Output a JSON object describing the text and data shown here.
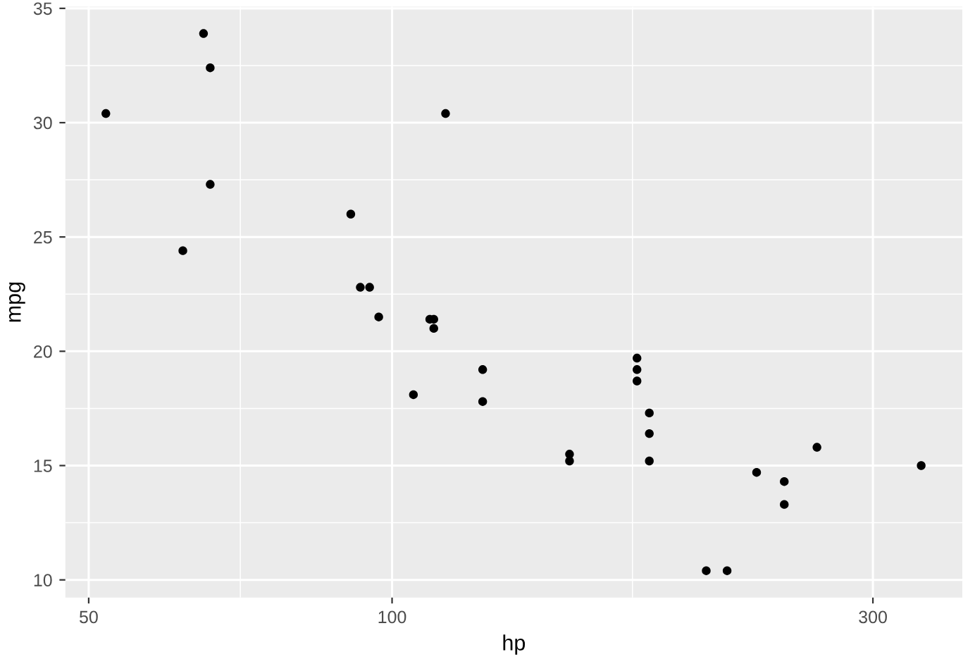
{
  "chart_data": {
    "type": "scatter",
    "xlabel": "hp",
    "ylabel": "mpg",
    "log": "x",
    "grid": true,
    "marker": "circle",
    "x": [
      110,
      93,
      110,
      175,
      105,
      245,
      62,
      95,
      123,
      123,
      180,
      180,
      180,
      205,
      215,
      230,
      66,
      52,
      65,
      97,
      150,
      150,
      245,
      175,
      66,
      91,
      113,
      264,
      175,
      335,
      109
    ],
    "series": [
      {
        "color": "#000000",
        "values": [
          21.0,
          22.8,
          21.4,
          18.7,
          18.1,
          14.3,
          24.4,
          22.8,
          19.2,
          17.8,
          16.4,
          17.3,
          15.2,
          10.4,
          10.4,
          14.7,
          32.4,
          30.4,
          33.9,
          21.5,
          15.5,
          15.2,
          13.3,
          19.2,
          27.3,
          26.0,
          30.4,
          15.8,
          19.7,
          15.0,
          21.4
        ]
      }
    ],
    "xlim": [
      47.4,
      368
    ],
    "ylim": [
      9.225,
      35.075
    ],
    "xticks": [
      50,
      {
        "value": 70.7,
        "label": null
      },
      100,
      {
        "value": 173.2,
        "label": null
      },
      300
    ],
    "yticks": [
      10,
      {
        "value": 12.5,
        "label": null
      },
      15,
      {
        "value": 17.5,
        "label": null
      },
      20,
      {
        "value": 22.5,
        "label": null
      },
      25,
      {
        "value": 27.5,
        "label": null
      },
      30,
      {
        "value": 32.5,
        "label": null
      },
      35
    ]
  }
}
